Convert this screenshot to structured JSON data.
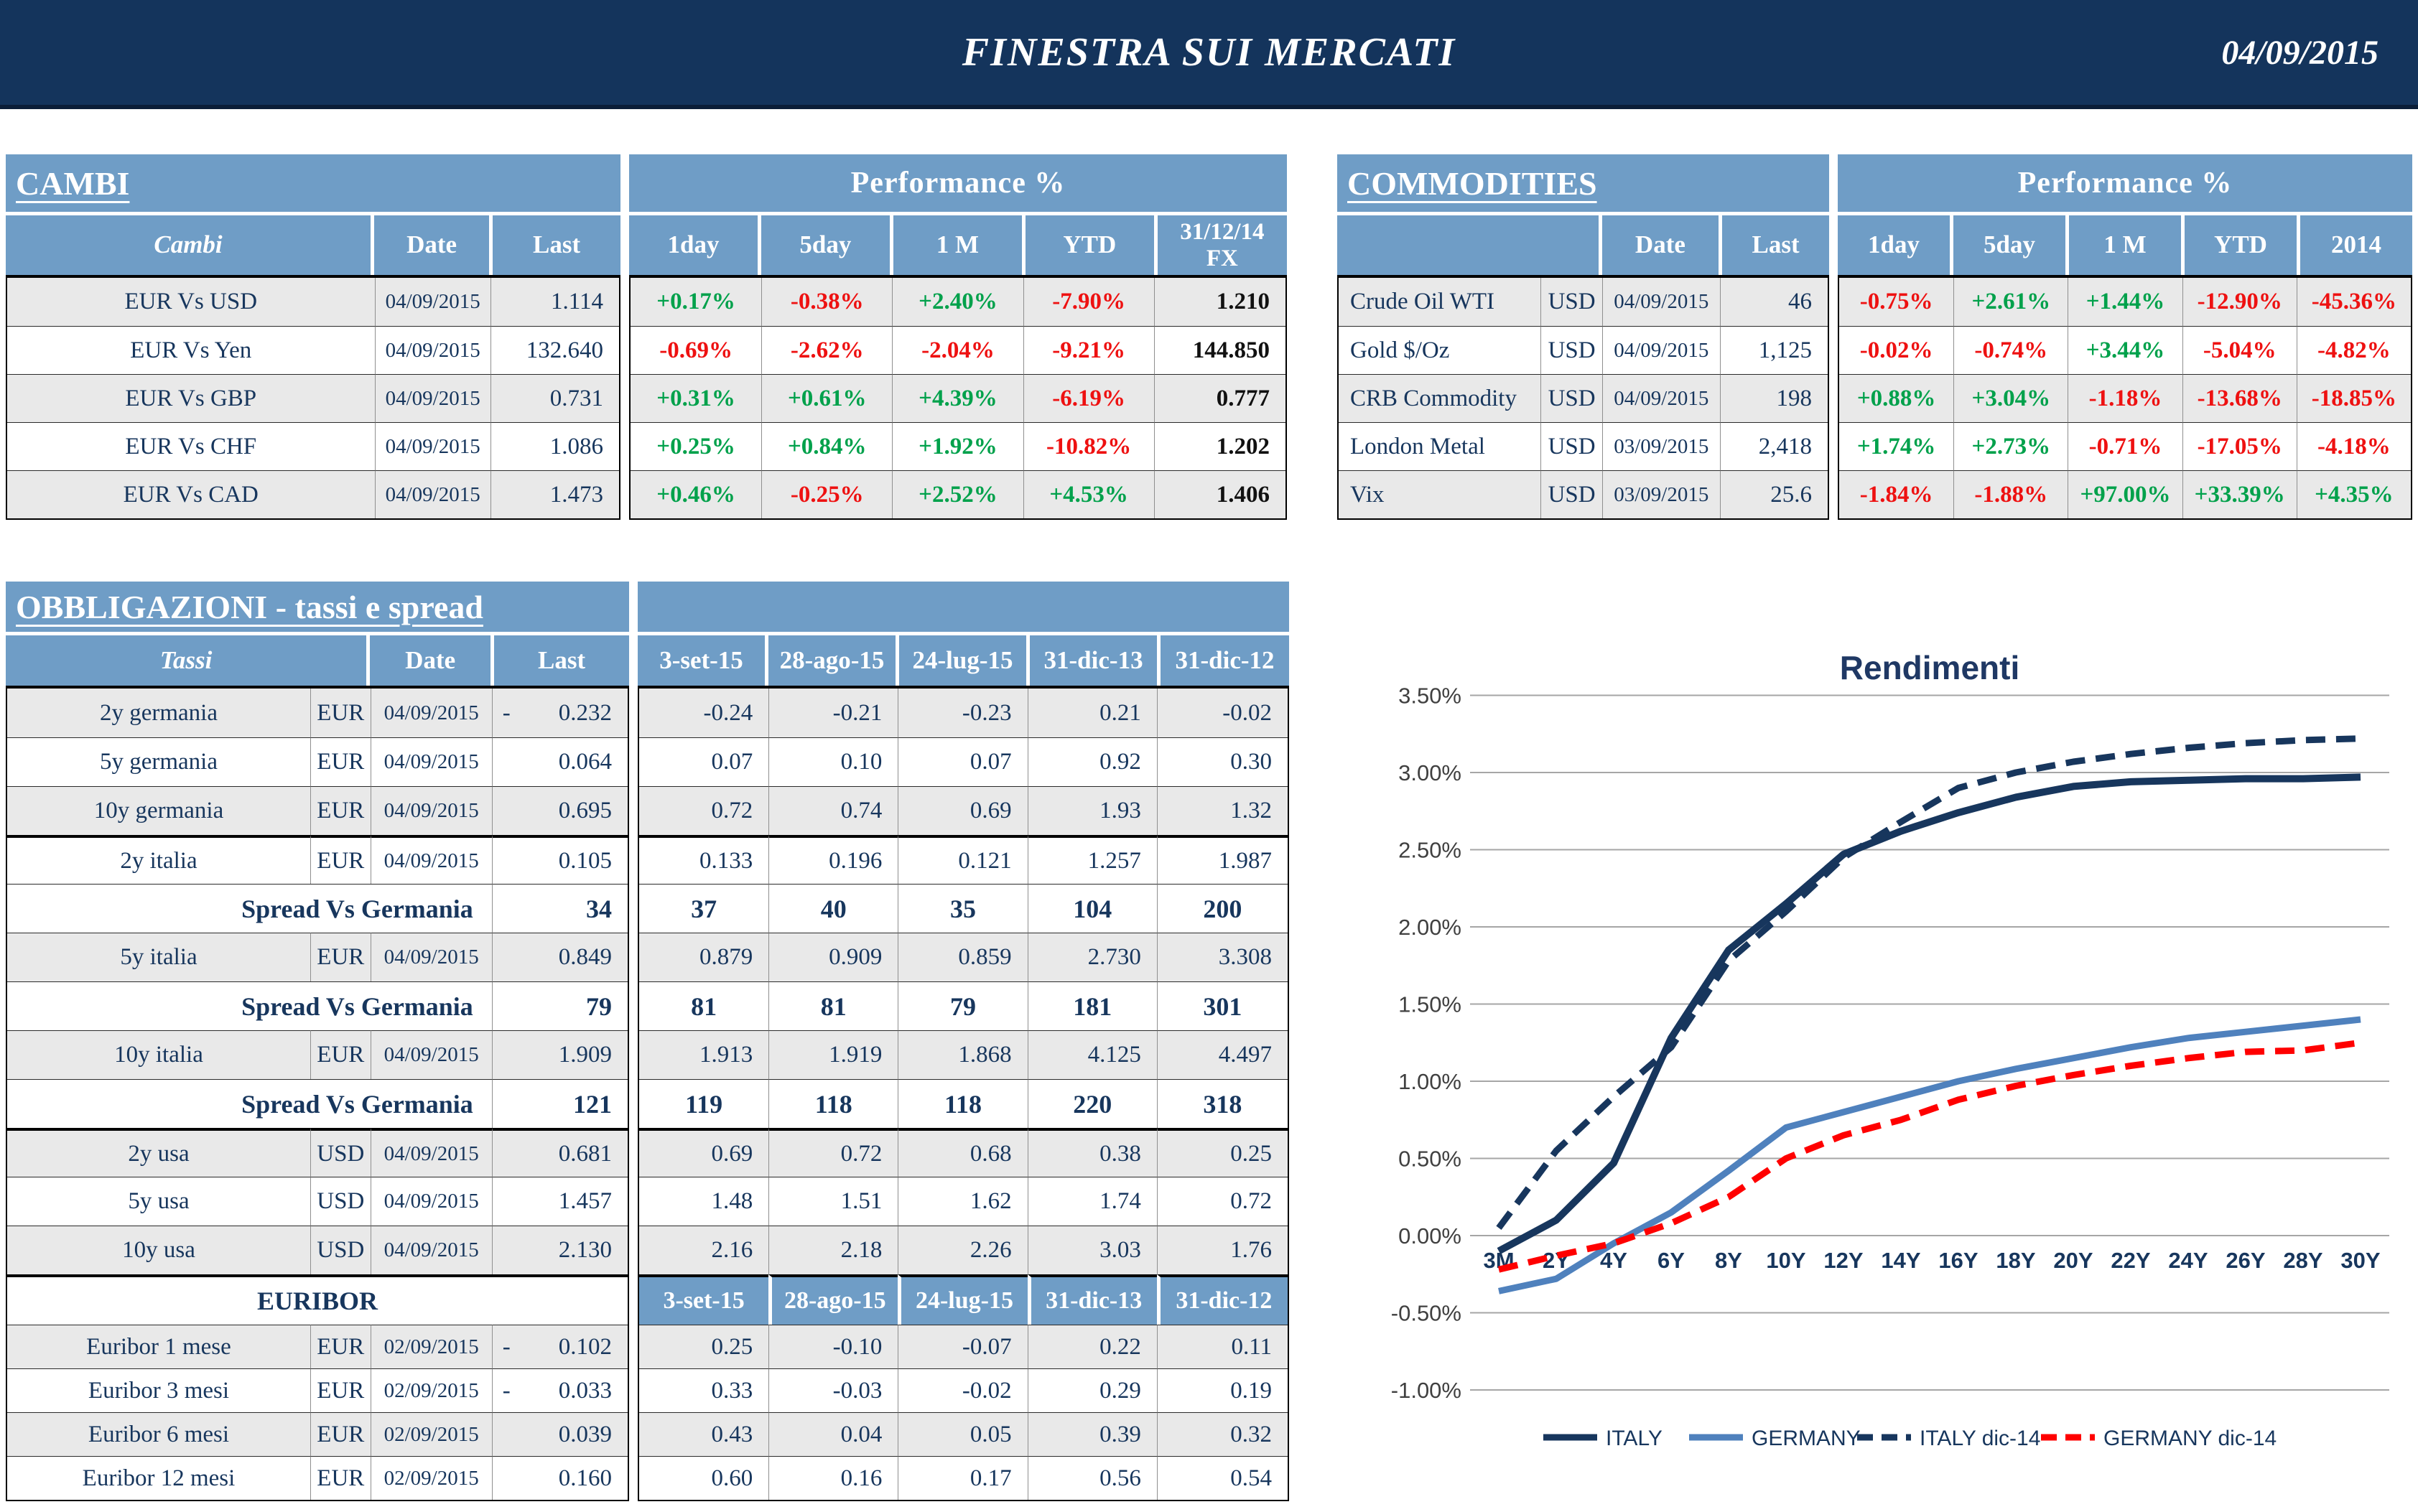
{
  "header": {
    "title": "FINESTRA SUI MERCATI",
    "date": "04/09/2015"
  },
  "colors": {
    "banner_navy": "#14345C",
    "header_blue": "#6F9DC6",
    "text_navy": "#17365D",
    "positive_green": "#00A14B",
    "negative_red": "#EE1111",
    "row_gray": "#E9E9E9",
    "italy_line": "#17365D",
    "germany_line": "#4F81BD",
    "germany_dic14_line": "#FF0000"
  },
  "cambi": {
    "title": "CAMBI",
    "perf_header": "Performance  %",
    "col_name": "Cambi",
    "col_date": "Date",
    "col_last": "Last",
    "perf_cols": [
      "1day",
      "5day",
      "1 M",
      "YTD",
      "31/12/14 FX"
    ],
    "rows": [
      {
        "name": "EUR Vs USD",
        "date": "04/09/2015",
        "last": "1.114",
        "perf": [
          "+0.17%",
          "-0.38%",
          "+2.40%",
          "-7.90%"
        ],
        "fx": "1.210"
      },
      {
        "name": "EUR Vs Yen",
        "date": "04/09/2015",
        "last": "132.640",
        "perf": [
          "-0.69%",
          "-2.62%",
          "-2.04%",
          "-9.21%"
        ],
        "fx": "144.850"
      },
      {
        "name": "EUR Vs GBP",
        "date": "04/09/2015",
        "last": "0.731",
        "perf": [
          "+0.31%",
          "+0.61%",
          "+4.39%",
          "-6.19%"
        ],
        "fx": "0.777"
      },
      {
        "name": "EUR Vs CHF",
        "date": "04/09/2015",
        "last": "1.086",
        "perf": [
          "+0.25%",
          "+0.84%",
          "+1.92%",
          "-10.82%"
        ],
        "fx": "1.202"
      },
      {
        "name": "EUR Vs CAD",
        "date": "04/09/2015",
        "last": "1.473",
        "perf": [
          "+0.46%",
          "-0.25%",
          "+2.52%",
          "+4.53%"
        ],
        "fx": "1.406"
      }
    ]
  },
  "commodities": {
    "title": "COMMODITIES",
    "perf_header": "Performance  %",
    "col_date": "Date",
    "col_last": "Last",
    "perf_cols": [
      "1day",
      "5day",
      "1 M",
      "YTD",
      "2014"
    ],
    "rows": [
      {
        "name": "Crude Oil WTI",
        "ccy": "USD",
        "date": "04/09/2015",
        "last": "46",
        "perf": [
          "-0.75%",
          "+2.61%",
          "+1.44%",
          "-12.90%",
          "-45.36%"
        ]
      },
      {
        "name": "Gold $/Oz",
        "ccy": "USD",
        "date": "04/09/2015",
        "last": "1,125",
        "perf": [
          "-0.02%",
          "-0.74%",
          "+3.44%",
          "-5.04%",
          "-4.82%"
        ]
      },
      {
        "name": "CRB Commodity",
        "ccy": "USD",
        "date": "04/09/2015",
        "last": "198",
        "perf": [
          "+0.88%",
          "+3.04%",
          "-1.18%",
          "-13.68%",
          "-18.85%"
        ]
      },
      {
        "name": "London Metal",
        "ccy": "USD",
        "date": "03/09/2015",
        "last": "2,418",
        "perf": [
          "+1.74%",
          "+2.73%",
          "-0.71%",
          "-17.05%",
          "-4.18%"
        ]
      },
      {
        "name": "Vix",
        "ccy": "USD",
        "date": "03/09/2015",
        "last": "25.6",
        "perf": [
          "-1.84%",
          "-1.88%",
          "+97.00%",
          "+33.39%",
          "+4.35%"
        ]
      }
    ]
  },
  "bonds": {
    "title": "OBBLIGAZIONI - tassi e spread",
    "col_name": "Tassi",
    "col_date": "Date",
    "col_last": "Last",
    "date_cols": [
      "3-set-15",
      "28-ago-15",
      "24-lug-15",
      "31-dic-13",
      "31-dic-12"
    ],
    "rows": [
      {
        "type": "data",
        "name": "2y germania",
        "ccy": "EUR",
        "date": "04/09/2015",
        "last": "-0.232",
        "vals": [
          "-0.24",
          "-0.21",
          "-0.23",
          "0.21",
          "-0.02"
        ]
      },
      {
        "type": "data",
        "name": "5y germania",
        "ccy": "EUR",
        "date": "04/09/2015",
        "last": "0.064",
        "vals": [
          "0.07",
          "0.10",
          "0.07",
          "0.92",
          "0.30"
        ]
      },
      {
        "type": "data",
        "name": "10y germania",
        "ccy": "EUR",
        "date": "04/09/2015",
        "last": "0.695",
        "vals": [
          "0.72",
          "0.74",
          "0.69",
          "1.93",
          "1.32"
        ]
      },
      {
        "type": "data",
        "thick": true,
        "name": "2y italia",
        "ccy": "EUR",
        "date": "04/09/2015",
        "last": "0.105",
        "vals": [
          "0.133",
          "0.196",
          "0.121",
          "1.257",
          "1.987"
        ]
      },
      {
        "type": "spread",
        "label": "Spread Vs Germania",
        "last": "34",
        "vals": [
          "37",
          "40",
          "35",
          "104",
          "200"
        ]
      },
      {
        "type": "data",
        "name": "5y italia",
        "ccy": "EUR",
        "date": "04/09/2015",
        "last": "0.849",
        "vals": [
          "0.879",
          "0.909",
          "0.859",
          "2.730",
          "3.308"
        ]
      },
      {
        "type": "spread",
        "label": "Spread Vs Germania",
        "last": "79",
        "vals": [
          "81",
          "81",
          "79",
          "181",
          "301"
        ]
      },
      {
        "type": "data",
        "name": "10y italia",
        "ccy": "EUR",
        "date": "04/09/2015",
        "last": "1.909",
        "vals": [
          "1.913",
          "1.919",
          "1.868",
          "4.125",
          "4.497"
        ]
      },
      {
        "type": "spread",
        "label": "Spread Vs Germania",
        "last": "121",
        "vals": [
          "119",
          "118",
          "118",
          "220",
          "318"
        ]
      },
      {
        "type": "data",
        "thick": true,
        "name": "2y usa",
        "ccy": "USD",
        "date": "04/09/2015",
        "last": "0.681",
        "vals": [
          "0.69",
          "0.72",
          "0.68",
          "0.38",
          "0.25"
        ]
      },
      {
        "type": "data",
        "name": "5y usa",
        "ccy": "USD",
        "date": "04/09/2015",
        "last": "1.457",
        "vals": [
          "1.48",
          "1.51",
          "1.62",
          "1.74",
          "0.72"
        ]
      },
      {
        "type": "data",
        "name": "10y usa",
        "ccy": "USD",
        "date": "04/09/2015",
        "last": "2.130",
        "vals": [
          "2.16",
          "2.18",
          "2.26",
          "3.03",
          "1.76"
        ]
      }
    ],
    "euribor": {
      "label": "EURIBOR",
      "date_cols": [
        "3-set-15",
        "28-ago-15",
        "24-lug-15",
        "31-dic-13",
        "31-dic-12"
      ],
      "rows": [
        {
          "name": "Euribor 1 mese",
          "ccy": "EUR",
          "date": "02/09/2015",
          "last": "-0.102",
          "vals": [
            "0.25",
            "-0.10",
            "-0.07",
            "0.22",
            "0.11"
          ]
        },
        {
          "name": "Euribor 3 mesi",
          "ccy": "EUR",
          "date": "02/09/2015",
          "last": "-0.033",
          "vals": [
            "0.33",
            "-0.03",
            "-0.02",
            "0.29",
            "0.19"
          ]
        },
        {
          "name": "Euribor 6 mesi",
          "ccy": "EUR",
          "date": "02/09/2015",
          "last": "0.039",
          "vals": [
            "0.43",
            "0.04",
            "0.05",
            "0.39",
            "0.32"
          ]
        },
        {
          "name": "Euribor 12 mesi",
          "ccy": "EUR",
          "date": "02/09/2015",
          "last": "0.160",
          "vals": [
            "0.60",
            "0.16",
            "0.17",
            "0.56",
            "0.54"
          ]
        }
      ]
    }
  },
  "chart_data": {
    "type": "line",
    "title": "Rendimenti",
    "categories": [
      "3M",
      "2Y",
      "4Y",
      "6Y",
      "8Y",
      "10Y",
      "12Y",
      "14Y",
      "16Y",
      "18Y",
      "20Y",
      "22Y",
      "24Y",
      "26Y",
      "28Y",
      "30Y"
    ],
    "ylim": [
      -1.0,
      3.5
    ],
    "y_tick_step": 0.5,
    "y_ticks": [
      "3.50%",
      "3.00%",
      "2.50%",
      "2.00%",
      "1.50%",
      "1.00%",
      "0.50%",
      "0.00%",
      "-0.50%",
      "-1.00%"
    ],
    "grid": true,
    "legend_position": "bottom",
    "series": [
      {
        "name": "ITALY",
        "style": "solid",
        "color": "#17365D",
        "values": [
          -0.1,
          0.1,
          0.47,
          1.28,
          1.85,
          2.15,
          2.47,
          2.62,
          2.74,
          2.84,
          2.91,
          2.94,
          2.95,
          2.96,
          2.96,
          2.97
        ]
      },
      {
        "name": "GERMANY",
        "style": "solid",
        "color": "#4F81BD",
        "values": [
          -0.36,
          -0.28,
          -0.05,
          0.15,
          0.42,
          0.7,
          0.8,
          0.9,
          1.0,
          1.08,
          1.15,
          1.22,
          1.28,
          1.32,
          1.36,
          1.4
        ]
      },
      {
        "name": "ITALY dic-14",
        "style": "dashed",
        "color": "#17365D",
        "values": [
          0.05,
          0.55,
          0.9,
          1.22,
          1.78,
          2.1,
          2.45,
          2.68,
          2.9,
          3.0,
          3.07,
          3.12,
          3.16,
          3.19,
          3.21,
          3.22
        ]
      },
      {
        "name": "GERMANY dic-14",
        "style": "dashed",
        "color": "#FF0000",
        "values": [
          -0.22,
          -0.13,
          -0.05,
          0.08,
          0.25,
          0.5,
          0.65,
          0.75,
          0.88,
          0.97,
          1.04,
          1.1,
          1.15,
          1.19,
          1.2,
          1.25
        ]
      }
    ]
  }
}
